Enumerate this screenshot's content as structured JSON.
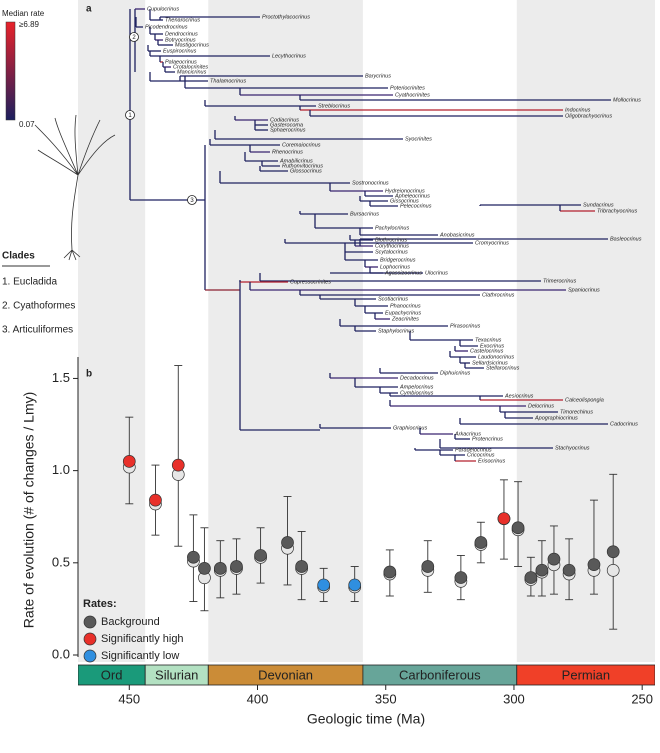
{
  "chart_data": {
    "type": "errorscatter",
    "panel_labels": [
      "a",
      "b"
    ],
    "xlabel": "Geologic time (Ma)",
    "ylabel": "Rate of evolution (# of changes / Lmy)",
    "xlim": [
      470,
      245
    ],
    "ylim": [
      0,
      1.6
    ],
    "xticks": [
      450,
      400,
      350,
      300,
      250
    ],
    "yticks": [
      {
        "value": 0,
        "label": "0.0"
      },
      0.5,
      {
        "value": 1,
        "label": "1.0"
      },
      1.5
    ],
    "x": [
      450,
      439.8,
      430.9,
      425,
      420.7,
      414.5,
      408.2,
      398.8,
      388.3,
      382.8,
      374.2,
      362.1,
      348.4,
      333.6,
      320.7,
      312.9,
      303.9,
      298.4,
      293.4,
      289.1,
      284.4,
      278.5,
      268.8,
      261.3
    ],
    "values": [
      1.05,
      0.84,
      1.03,
      0.53,
      0.47,
      0.47,
      0.48,
      0.54,
      0.61,
      0.48,
      0.38,
      0.38,
      0.45,
      0.48,
      0.42,
      0.61,
      0.74,
      0.69,
      0.42,
      0.46,
      0.52,
      0.46,
      0.49,
      0.56
    ],
    "values_alt": [
      1.03,
      0.83,
      0.99,
      0.52,
      0.43,
      0.47,
      0.48,
      0.54,
      0.59,
      0.48,
      0.38,
      0.38,
      0.45,
      0.47,
      0.41,
      0.61,
      0.75,
      0.69,
      0.42,
      0.46,
      0.5,
      0.45,
      0.47,
      0.47
    ],
    "ci_low": [
      0.82,
      0.65,
      0.59,
      0.29,
      0.24,
      0.31,
      0.33,
      0.39,
      0.38,
      0.3,
      0.29,
      0.29,
      0.32,
      0.34,
      0.3,
      0.5,
      0.52,
      0.48,
      0.32,
      0.32,
      0.33,
      0.3,
      0.33,
      0.14
    ],
    "ci_high": [
      1.29,
      1.03,
      1.57,
      0.76,
      0.69,
      0.62,
      0.63,
      0.69,
      0.86,
      0.67,
      0.47,
      0.48,
      0.57,
      0.62,
      0.54,
      0.72,
      0.95,
      0.94,
      0.53,
      0.62,
      0.7,
      0.63,
      0.84,
      0.98
    ],
    "classes": [
      1,
      1,
      1,
      0,
      0,
      0,
      0,
      0,
      0,
      0,
      2,
      2,
      0,
      0,
      0,
      0,
      1,
      0,
      0,
      0,
      0,
      0,
      0,
      0
    ],
    "alt_color": "#e6e6e6",
    "legend": {
      "title": "Rates:",
      "corner": "lower-left",
      "items": [
        {
          "name": "Background",
          "color": "#595959"
        },
        {
          "name": "Significantly high",
          "color": "#e8302a"
        },
        {
          "name": "Significantly low",
          "color": "#2f8fe0"
        }
      ]
    },
    "periods": [
      {
        "name": "Ord",
        "start": 470,
        "end": 443.8,
        "color": "#1a9a7a"
      },
      {
        "name": "Silurian",
        "start": 443.8,
        "end": 419.2,
        "color": "#b3e1c2"
      },
      {
        "name": "Devonian",
        "start": 419.2,
        "end": 358.9,
        "color": "#cb8c37"
      },
      {
        "name": "Carboniferous",
        "start": 358.9,
        "end": 298.9,
        "color": "#67a599"
      },
      {
        "name": "Permian",
        "start": 298.9,
        "end": 245,
        "color": "#f04028"
      }
    ],
    "colorbar": {
      "title": "Median rate",
      "max_label": "≥6.89",
      "min_label": "0.07",
      "colors": [
        "#e8222a",
        "#1c1f5e"
      ]
    },
    "clades": {
      "title": "Clades",
      "items": [
        "1. Eucladida",
        "2. Cyathoformes",
        "3. Articuliformes"
      ]
    },
    "tree": {
      "node_labels": [
        "1",
        "2",
        "3"
      ],
      "taxa": [
        "Cupulocrinus",
        "Thenarocrinus",
        "Proctothylacocrinus",
        "Picodendrocrinus",
        "Dendrocrinus",
        "Botryocrinus",
        "Mastigocrinus",
        "Euspirocrinus",
        "Lecythocrinus",
        "Palaeocrinus",
        "Crotalocrinites",
        "Mancicrinus",
        "Thalamocrinus",
        "Barycrinus",
        "Poteriocrinites",
        "Cyathocrinites",
        "Mollocrinus",
        "Streblocrinus",
        "Indocrinus",
        "Oligobrachyocrinus",
        "Codiacrinus",
        "Gasterocoma",
        "Sphaerocrinus",
        "Syocrinites",
        "Coremaiocrinus",
        "Rhenocrinus",
        "Amabilicrinus",
        "Ruthonvitocrinus",
        "Glossocrinus",
        "Sostronocrinus",
        "Hydreionocrinus",
        "Apheleocrinus",
        "Gissocrinus",
        "Pelecocrinus",
        "Sundacrinus",
        "Tribrachyocrinus",
        "Bursacrinus",
        "Pachylocrinus",
        "Anobasicrinus",
        "Blothrocrinus",
        "Corythocrinus",
        "Basleocrinus",
        "Cromyocrinus",
        "Scytalocrinus",
        "Bridgerocrinus",
        "Lophocrinus",
        "Agassizocrinus",
        "Ulocrinus",
        "Trimerocrinus",
        "Cupressocrinites",
        "Spaniocrinus",
        "Clathrocrinus",
        "Scotiacrinus",
        "Phanocrinus",
        "Eupachycrinus",
        "Zeacrinites",
        "Pirasocrinus",
        "Staphylocrinus",
        "Texacrinus",
        "Exocrinus",
        "Castelocrinus",
        "Laudonocrinus",
        "Sellardsicrinus",
        "Stellarocrinus",
        "Diphuicrinus",
        "Decadocrinus",
        "Ampelocrinus",
        "Cymbiocrinus",
        "Aesiocrinus",
        "Calceolispongia",
        "Delocrinus",
        "Timorechinus",
        "Apographiocrinus",
        "Cadocrinus",
        "Graphiocrinus",
        "Arkacrinus",
        "Protencrinus",
        "Stachyocrinus",
        "Paradelocrinus",
        "Cricocrinus",
        "Erisocrinus"
      ]
    }
  }
}
